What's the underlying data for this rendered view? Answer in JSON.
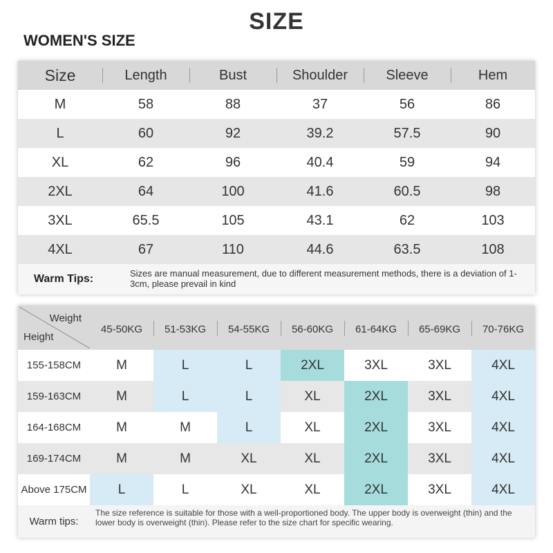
{
  "title": "SIZE",
  "subtitle": "WOMEN'S SIZE",
  "measure_table": {
    "headers": [
      "Size",
      "Length",
      "Bust",
      "Shoulder",
      "Sleeve",
      "Hem"
    ],
    "rows": [
      [
        "M",
        "58",
        "88",
        "37",
        "56",
        "86"
      ],
      [
        "L",
        "60",
        "92",
        "39.2",
        "57.5",
        "90"
      ],
      [
        "XL",
        "62",
        "96",
        "40.4",
        "59",
        "94"
      ],
      [
        "2XL",
        "64",
        "100",
        "41.6",
        "60.5",
        "98"
      ],
      [
        "3XL",
        "65.5",
        "105",
        "43.1",
        "62",
        "103"
      ],
      [
        "4XL",
        "67",
        "110",
        "44.6",
        "63.5",
        "108"
      ]
    ],
    "tips_label": "Warm Tips:",
    "tips_text": "Sizes are manual measurement, due to different measurement methods, there is a deviation of 1-3cm, please prevail in kind"
  },
  "fit_table": {
    "corner_weight": "Weight",
    "corner_height": "Height",
    "weights": [
      "45-50KG",
      "51-53KG",
      "54-55KG",
      "56-60KG",
      "61-64KG",
      "65-69KG",
      "70-76KG"
    ],
    "rows": [
      {
        "height": "155-158CM",
        "sizes": [
          "M",
          "L",
          "L",
          "2XL",
          "3XL",
          "3XL",
          "4XL"
        ]
      },
      {
        "height": "159-163CM",
        "sizes": [
          "M",
          "L",
          "L",
          "XL",
          "2XL",
          "3XL",
          "4XL"
        ]
      },
      {
        "height": "164-168CM",
        "sizes": [
          "M",
          "M",
          "L",
          "XL",
          "2XL",
          "3XL",
          "4XL"
        ]
      },
      {
        "height": "169-174CM",
        "sizes": [
          "M",
          "M",
          "XL",
          "XL",
          "2XL",
          "3XL",
          "4XL"
        ]
      },
      {
        "height": "Above 175CM",
        "sizes": [
          "L",
          "L",
          "XL",
          "XL",
          "2XL",
          "3XL",
          "4XL"
        ]
      }
    ],
    "tips_label": "Warm tips:",
    "tips_text": "The size reference is suitable for those with a well-proportioned body. The upper body is overweight (thin) and the lower body is overweight (thin). Please refer to the size chart for specific wearing.",
    "colors": {
      "highlight_light": "#d6ebf5",
      "highlight_teal": "#a6dcdc"
    }
  }
}
